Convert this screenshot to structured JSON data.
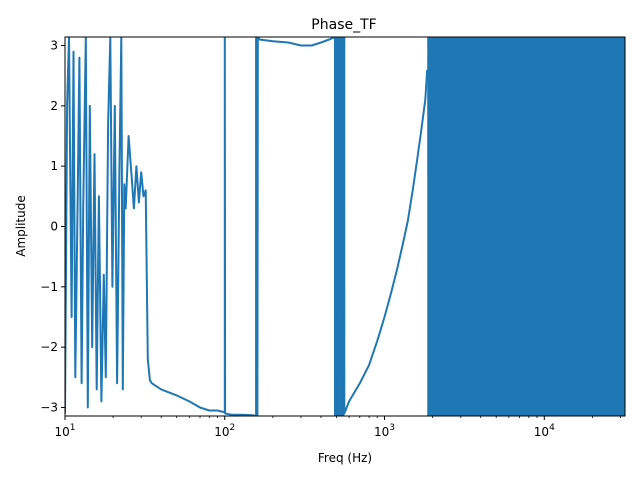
{
  "chart_data": {
    "type": "line",
    "title": "Phase_TF",
    "xlabel": "Freq (Hz)",
    "ylabel": "Amplitude",
    "xscale": "log",
    "xlim": [
      10,
      32000
    ],
    "ylim": [
      -3.1416,
      3.1416
    ],
    "grid": false,
    "color": "#1f77b4",
    "x_ticks": [
      {
        "value": 10,
        "base": "10",
        "exp": "1"
      },
      {
        "value": 100,
        "base": "10",
        "exp": "2"
      },
      {
        "value": 1000,
        "base": "10",
        "exp": "3"
      },
      {
        "value": 10000,
        "base": "10",
        "exp": "4"
      }
    ],
    "y_ticks": [
      {
        "value": 3,
        "label": "3"
      },
      {
        "value": 2,
        "label": "2"
      },
      {
        "value": 1,
        "label": "1"
      },
      {
        "value": 0,
        "label": "0"
      },
      {
        "value": -1,
        "label": "−1"
      },
      {
        "value": -2,
        "label": "−2"
      },
      {
        "value": -3,
        "label": "−3"
      }
    ],
    "series": [
      {
        "x": [
          10,
          10.3,
          10.6,
          11,
          11.3,
          11.6,
          12,
          12.3,
          12.7,
          13,
          13.5,
          13.9,
          14.3,
          14.8,
          15.3,
          15.8,
          16.3,
          16.9,
          17.5,
          18,
          18.6,
          19.2,
          19.8,
          20.5,
          21.2,
          21.9,
          22.5,
          23,
          23.5,
          24,
          25,
          26,
          27,
          28,
          29,
          30,
          31,
          32,
          33,
          34,
          35,
          40,
          50,
          60,
          70,
          80,
          90,
          100,
          100,
          100.5,
          110,
          130,
          150,
          157,
          157,
          160,
          161,
          165,
          200,
          250,
          300,
          350,
          400,
          450,
          490,
          490,
          560,
          560,
          600,
          700,
          800,
          900,
          1000,
          1100,
          1200,
          1300,
          1400,
          1500,
          1600,
          1700,
          1800,
          1850
        ],
        "y": [
          -3.1,
          2.0,
          3.14,
          -1.5,
          2.9,
          -2.5,
          0.5,
          2.8,
          -2.6,
          0.3,
          3.14,
          -3.0,
          2.0,
          -2.0,
          1.2,
          -2.7,
          0.5,
          -2.9,
          -0.8,
          -2.5,
          1.7,
          3.14,
          -1.0,
          2.0,
          -2.6,
          0.9,
          3.14,
          -2.7,
          0.7,
          0.3,
          1.5,
          0.9,
          0.3,
          1.0,
          0.4,
          0.9,
          0.5,
          0.6,
          -2.2,
          -2.55,
          -2.6,
          -2.7,
          -2.8,
          -2.9,
          -3.0,
          -3.05,
          -3.05,
          -3.08,
          3.14,
          -3.1,
          -3.12,
          -3.12,
          -3.13,
          -3.14,
          3.14,
          -3.14,
          3.14,
          3.1,
          3.07,
          3.05,
          3.0,
          3.0,
          3.05,
          3.1,
          3.14,
          -3.14,
          3.14,
          -3.1,
          -2.9,
          -2.6,
          -2.3,
          -1.9,
          -1.5,
          -1.1,
          -0.7,
          -0.3,
          0.1,
          0.6,
          1.1,
          1.6,
          2.1,
          2.6
        ]
      }
    ],
    "noise_band": {
      "x_start": 1850,
      "x_end": 32000,
      "y_min": -3.14,
      "y_max": 3.14
    },
    "vertical_bands": [
      {
        "x_start": 490,
        "x_end": 560,
        "y_min": -3.14,
        "y_max": 3.14
      }
    ]
  }
}
